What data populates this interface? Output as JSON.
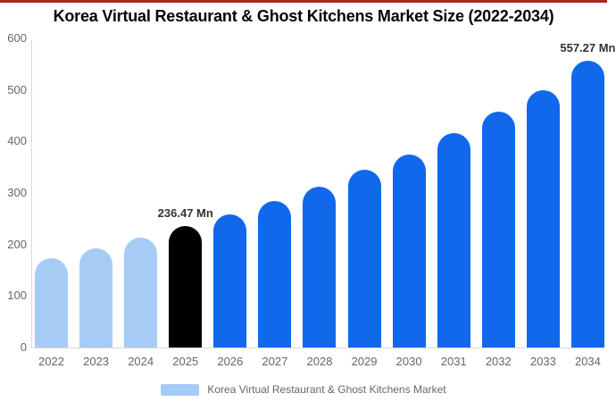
{
  "page": {
    "top_accent_color": "#B22222",
    "background": "#ffffff"
  },
  "title": "Korea Virtual Restaurant & Ghost Kitchens Market Size (2022-2034)",
  "chart_data": {
    "type": "bar",
    "title": "Korea Virtual Restaurant & Ghost Kitchens Market Size (2022-2034)",
    "unit": "Mn",
    "ylim": [
      0,
      600
    ],
    "yticks": [
      600,
      500,
      400,
      300,
      200,
      100,
      0
    ],
    "grid": false,
    "legend_position": "bottom",
    "categories": [
      "2022",
      "2023",
      "2024",
      "2025",
      "2026",
      "2027",
      "2028",
      "2029",
      "2030",
      "2031",
      "2032",
      "2033",
      "2034"
    ],
    "series": [
      {
        "name": "Korea Virtual Restaurant & Ghost Kitchens Market",
        "values": [
          174,
          192,
          213,
          236.47,
          259,
          284,
          313,
          345,
          375,
          416,
          458,
          500,
          557.27
        ]
      }
    ],
    "point_roles": [
      "history",
      "history",
      "history",
      "base",
      "forecast",
      "forecast",
      "forecast",
      "forecast",
      "forecast",
      "forecast",
      "forecast",
      "forecast",
      "forecast"
    ],
    "data_labels": {
      "2025": "236.47 Mn",
      "2034": "557.27 Mn"
    },
    "colors": {
      "history": "#A6CBF5",
      "base": "#000000",
      "forecast": "#1168EB"
    }
  },
  "axis": {
    "line_color": "#D9D9D9",
    "label_color": "#666666"
  },
  "legend": {
    "swatch_color": "#A6CBF5",
    "label": "Korea Virtual Restaurant & Ghost Kitchens Market"
  }
}
